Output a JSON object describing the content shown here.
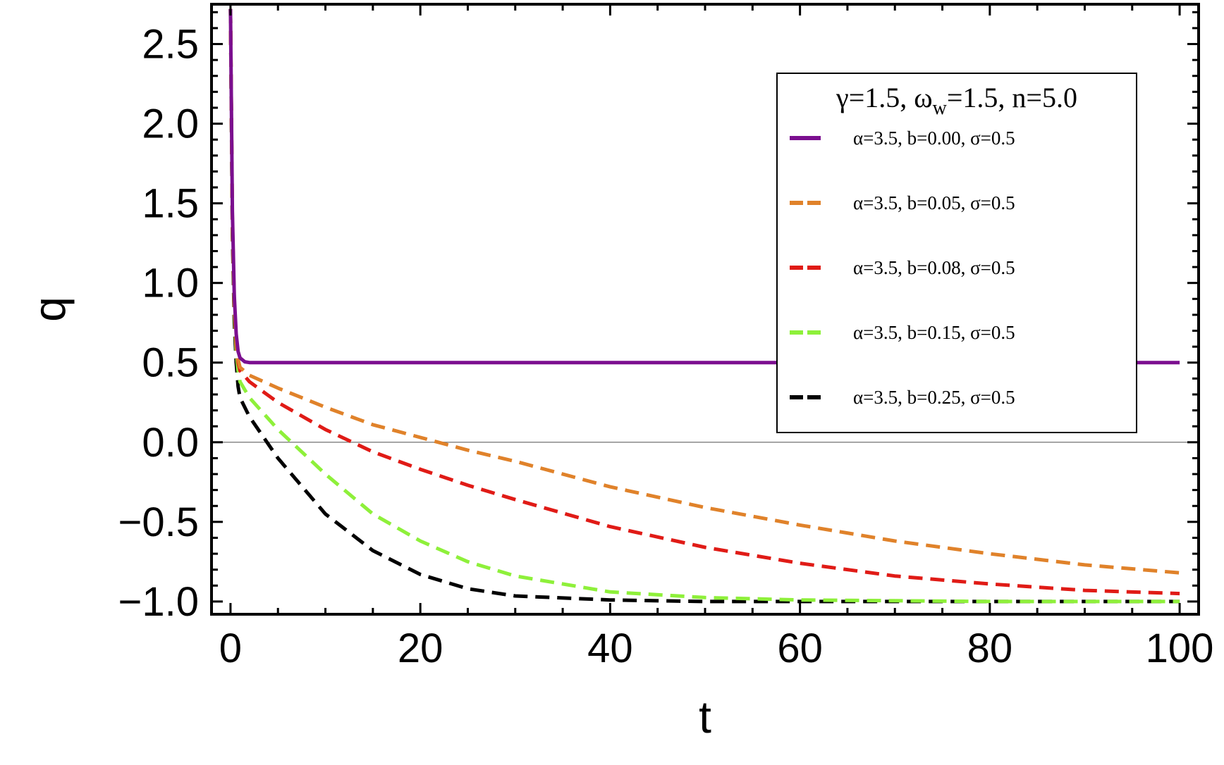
{
  "chart_data": {
    "type": "line",
    "title": "",
    "xlabel": "t",
    "ylabel": "q",
    "xlim": [
      -2,
      102
    ],
    "ylim": [
      -1.08,
      2.75
    ],
    "xticks": [
      0,
      20,
      40,
      60,
      80,
      100
    ],
    "xtick_labels": [
      "0",
      "20",
      "40",
      "60",
      "80",
      "100"
    ],
    "yticks": [
      -1.0,
      -0.5,
      0.0,
      0.5,
      1.0,
      1.5,
      2.0,
      2.5
    ],
    "ytick_labels": [
      "−1.0",
      "−0.5",
      "0.0",
      "0.5",
      "1.0",
      "1.5",
      "2.0",
      "2.5"
    ],
    "zero_line": true,
    "grid": false,
    "legend": {
      "placement": "top-right",
      "title": "γ=1.5, ωw=1.5, n=5.0",
      "title_parts": [
        "γ=1.5, ω",
        "w",
        "=1.5, n=5.0"
      ]
    },
    "series": [
      {
        "name": "α=3.5, b=0.00, σ=0.5",
        "color": "#7b0f8f",
        "dashed": false,
        "x": [
          0,
          0.2,
          0.4,
          0.6,
          0.8,
          1.0,
          1.5,
          2,
          5,
          10,
          20,
          40,
          60,
          80,
          100
        ],
        "y": [
          2.72,
          1.45,
          0.92,
          0.68,
          0.57,
          0.53,
          0.505,
          0.5,
          0.5,
          0.5,
          0.5,
          0.5,
          0.5,
          0.5,
          0.5
        ]
      },
      {
        "name": "α=3.5, b=0.05, σ=0.5",
        "color": "#e0822a",
        "dashed": true,
        "x": [
          0,
          0.2,
          0.4,
          0.6,
          0.8,
          1,
          2,
          5,
          10,
          15,
          20,
          25,
          30,
          40,
          50,
          60,
          70,
          80,
          90,
          100
        ],
        "y": [
          2.72,
          1.4,
          0.88,
          0.64,
          0.52,
          0.47,
          0.42,
          0.34,
          0.22,
          0.11,
          0.03,
          -0.05,
          -0.12,
          -0.28,
          -0.41,
          -0.52,
          -0.62,
          -0.7,
          -0.77,
          -0.82
        ]
      },
      {
        "name": "α=3.5, b=0.08, σ=0.5",
        "color": "#e01b16",
        "dashed": true,
        "x": [
          0,
          0.2,
          0.4,
          0.6,
          0.8,
          1,
          2,
          5,
          10,
          15,
          20,
          25,
          30,
          40,
          50,
          60,
          70,
          80,
          90,
          100
        ],
        "y": [
          2.72,
          1.38,
          0.86,
          0.62,
          0.5,
          0.45,
          0.38,
          0.25,
          0.08,
          -0.06,
          -0.17,
          -0.27,
          -0.36,
          -0.53,
          -0.66,
          -0.76,
          -0.84,
          -0.89,
          -0.93,
          -0.95
        ]
      },
      {
        "name": "α=3.5, b=0.15, σ=0.5",
        "color": "#8ef03a",
        "dashed": true,
        "x": [
          0,
          0.2,
          0.4,
          0.6,
          0.8,
          1,
          2,
          5,
          10,
          15,
          20,
          25,
          30,
          40,
          50,
          60,
          70,
          80,
          100
        ],
        "y": [
          2.72,
          1.35,
          0.82,
          0.57,
          0.45,
          0.38,
          0.28,
          0.08,
          -0.2,
          -0.45,
          -0.62,
          -0.75,
          -0.84,
          -0.94,
          -0.975,
          -0.99,
          -0.995,
          -1.0,
          -1.0
        ]
      },
      {
        "name": "α=3.5, b=0.25, σ=0.5",
        "color": "#000000",
        "dashed": true,
        "x": [
          0,
          0.2,
          0.4,
          0.6,
          0.8,
          1,
          2,
          5,
          10,
          15,
          20,
          25,
          30,
          40,
          50,
          60,
          80,
          100
        ],
        "y": [
          2.72,
          1.3,
          0.75,
          0.5,
          0.35,
          0.28,
          0.16,
          -0.1,
          -0.45,
          -0.68,
          -0.83,
          -0.92,
          -0.965,
          -0.99,
          -1.0,
          -1.0,
          -1.0,
          -1.0
        ]
      }
    ]
  }
}
